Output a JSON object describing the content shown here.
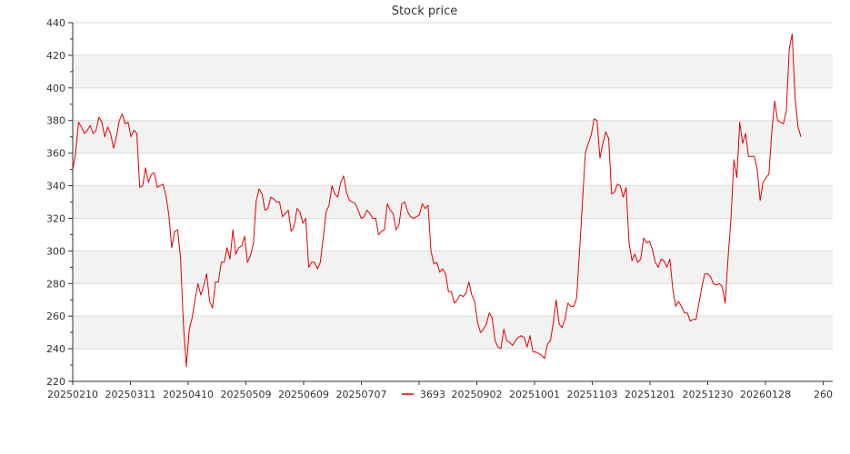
{
  "chart_data": {
    "type": "line",
    "title": "Stock price",
    "xlabel": "",
    "ylabel": "",
    "ylim": [
      220,
      440
    ],
    "y_ticks": [
      220,
      240,
      260,
      280,
      300,
      320,
      340,
      360,
      380,
      400,
      420,
      440
    ],
    "x_tick_labels": [
      "20250210",
      "20250311",
      "20250410",
      "20250509",
      "20250609",
      "20250707",
      "",
      "20250902",
      "20251001",
      "20251103",
      "20251201",
      "20251230",
      "20260128",
      "260"
    ],
    "grid": true,
    "alternating_bands": true,
    "legend": {
      "position": "bottom-center",
      "entries": [
        "3693"
      ]
    },
    "series": [
      {
        "name": "3693",
        "color": "#e00000",
        "values": [
          350,
          360,
          379,
          376,
          372,
          374,
          377,
          372,
          374,
          382,
          379,
          370,
          376,
          372,
          363,
          370,
          380,
          384,
          378,
          379,
          370,
          374,
          372,
          339,
          340,
          351,
          342,
          347,
          348,
          339,
          340,
          341,
          334,
          322,
          302,
          312,
          313,
          296,
          255,
          229,
          252,
          259,
          270,
          280,
          273,
          279,
          286,
          269,
          265,
          281,
          281,
          293,
          293,
          302,
          295,
          313,
          298,
          302,
          303,
          309,
          293,
          297,
          304,
          331,
          338,
          335,
          325,
          326,
          333,
          332,
          330,
          330,
          321,
          323,
          325,
          312,
          315,
          326,
          324,
          317,
          320,
          290,
          293,
          293,
          289,
          293,
          308,
          324,
          328,
          340,
          335,
          333,
          342,
          346,
          336,
          331,
          330,
          329,
          325,
          320,
          321,
          325,
          323,
          320,
          320,
          310,
          312,
          313,
          329,
          325,
          323,
          313,
          316,
          329,
          330,
          324,
          321,
          320,
          321,
          322,
          329,
          326,
          328,
          300,
          292,
          293,
          287,
          289,
          286,
          275,
          275,
          268,
          270,
          273,
          272,
          274,
          281,
          273,
          269,
          256,
          250,
          252,
          255,
          262,
          259,
          245,
          241,
          240,
          252,
          245,
          244,
          242,
          245,
          247,
          248,
          247,
          241,
          248,
          238,
          238,
          237,
          236,
          234,
          243,
          245,
          256,
          270,
          255,
          253,
          258,
          268,
          266,
          266,
          271,
          300,
          330,
          360,
          366,
          371,
          381,
          380,
          357,
          366,
          373,
          369,
          335,
          336,
          341,
          340,
          333,
          339,
          305,
          294,
          298,
          293,
          295,
          308,
          305,
          306,
          301,
          293,
          290,
          295,
          294,
          290,
          295,
          277,
          266,
          269,
          266,
          262,
          262,
          257,
          258,
          258,
          268,
          278,
          286,
          286,
          284,
          280,
          279,
          280,
          278,
          268,
          296,
          320,
          356,
          345,
          379,
          366,
          372,
          358,
          358,
          358,
          350,
          331,
          342,
          345,
          347,
          373,
          392,
          380,
          379,
          378,
          386,
          424,
          433,
          394,
          376,
          370
        ]
      }
    ]
  }
}
